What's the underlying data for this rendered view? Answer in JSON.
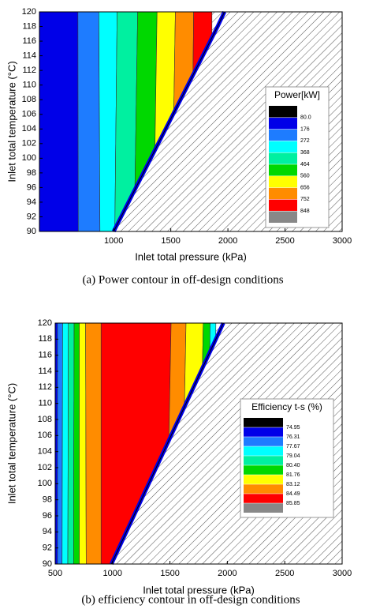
{
  "chart_data": [
    {
      "type": "contour",
      "caption": "(a)  Power  contour  in  off-design  conditions",
      "x_label": "Inlet total pressure (kPa)",
      "y_label": "Inlet total temperature (°C)",
      "xlim": [
        350,
        3000
      ],
      "ylim": [
        90,
        120
      ],
      "xticks": [
        1000,
        1500,
        2000,
        2500,
        3000
      ],
      "yticks": [
        90,
        92,
        94,
        96,
        98,
        100,
        102,
        104,
        106,
        108,
        110,
        112,
        114,
        116,
        118,
        120
      ],
      "colorbar_title": "Power[kW]",
      "levels": [
        {
          "value": 80,
          "label": "80.0"
        },
        176,
        272,
        368,
        464,
        560,
        656,
        752,
        848
      ],
      "colorbar_colors": [
        "#000000",
        "#0000e8",
        "#1e7cff",
        "#00ffff",
        "#00f0a0",
        "#00d800",
        "#ffff00",
        "#ff8c00",
        "#ff0000",
        "#888888"
      ],
      "bands": [
        {
          "color": "#0000e8",
          "right_edge": [
            690,
            687
          ]
        },
        {
          "color": "#1e7cff",
          "right_edge": [
            880,
            870
          ]
        },
        {
          "color": "#00ffff",
          "right_edge": [
            1010,
            1030
          ]
        },
        {
          "color": "#00f0a0",
          "right_edge": [
            1180,
            1210
          ]
        },
        {
          "color": "#00d800",
          "right_edge": [
            1350,
            1380
          ]
        },
        {
          "color": "#ffff00",
          "right_edge": [
            1510,
            1540
          ]
        },
        {
          "color": "#ff8c00",
          "right_edge": [
            1680,
            1700
          ]
        },
        {
          "color": "#ff0000",
          "right_edge": [
            1860,
            1860
          ]
        }
      ],
      "feasibility_boundary": {
        "x": [
          1000,
          1065,
          1130,
          1195,
          1260,
          1325,
          1390,
          1455,
          1520,
          1585,
          1650,
          1715,
          1780,
          1845,
          1910,
          1970
        ],
        "y": [
          90,
          92,
          94,
          96,
          98,
          100,
          102,
          104,
          106,
          108,
          110,
          112,
          114,
          116,
          118,
          120
        ]
      }
    },
    {
      "type": "contour",
      "caption": "(b)  efficiency  contour  in  off-design  conditions",
      "x_label": "Inlet total pressure (kPa)",
      "y_label": "Inlet total temperature (°C)",
      "xlim": [
        500,
        3000
      ],
      "ylim": [
        90,
        120
      ],
      "xticks": [
        500,
        1000,
        1500,
        2000,
        2500,
        3000
      ],
      "yticks": [
        90,
        92,
        94,
        96,
        98,
        100,
        102,
        104,
        106,
        108,
        110,
        112,
        114,
        116,
        118,
        120
      ],
      "colorbar_title": "Efficiency t-s (%)",
      "levels": [
        74.95,
        76.31,
        77.67,
        79.04,
        {
          "value": 80.4,
          "label": "80.40"
        },
        81.76,
        83.12,
        84.49,
        85.85
      ],
      "colorbar_colors": [
        "#000000",
        "#0000e8",
        "#1e7cff",
        "#00ffff",
        "#00f0a0",
        "#00d800",
        "#ffff00",
        "#ff8c00",
        "#ff0000",
        "#888888"
      ],
      "bands": [
        {
          "color": "#0000e8",
          "right_edge": [
            520,
            520
          ]
        },
        {
          "color": "#1e7cff",
          "right_edge": [
            560,
            565
          ]
        },
        {
          "color": "#00ffff",
          "right_edge": [
            610,
            615
          ]
        },
        {
          "color": "#00f0a0",
          "right_edge": [
            660,
            665
          ]
        },
        {
          "color": "#00d800",
          "right_edge": [
            710,
            710
          ]
        },
        {
          "color": "#ffff00",
          "right_edge": [
            770,
            765
          ]
        },
        {
          "color": "#ff8c00",
          "right_edge": [
            900,
            900
          ]
        },
        {
          "color": "#ff0000",
          "right_edge": [
            1470,
            1510
          ]
        },
        {
          "color": "#ff8c00",
          "right_edge": [
            1600,
            1640
          ]
        },
        {
          "color": "#ffff00",
          "right_edge": [
            1750,
            1790
          ]
        },
        {
          "color": "#00d800",
          "right_edge": [
            1820,
            1850
          ]
        },
        {
          "color": "#00ffff",
          "right_edge": [
            1880,
            1900
          ]
        }
      ],
      "feasibility_boundary": {
        "x": [
          990,
          1055,
          1120,
          1185,
          1250,
          1315,
          1380,
          1445,
          1510,
          1575,
          1640,
          1705,
          1770,
          1835,
          1900,
          1965
        ],
        "y": [
          90,
          92,
          94,
          96,
          98,
          100,
          102,
          104,
          106,
          108,
          110,
          112,
          114,
          116,
          118,
          120
        ]
      }
    }
  ]
}
